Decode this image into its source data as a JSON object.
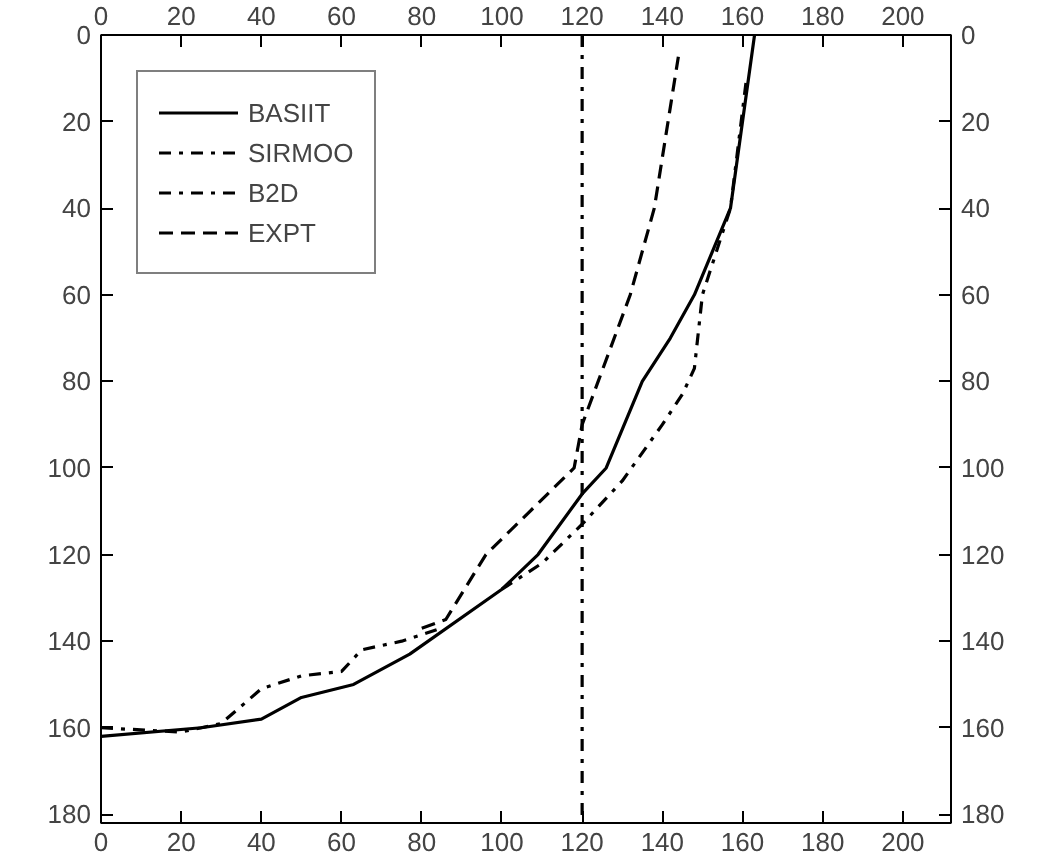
{
  "chart_data": {
    "type": "line",
    "series": [
      {
        "name": "BASIIT",
        "color": "#000000",
        "line_style": "solid",
        "x": [
          0,
          25,
          40,
          50,
          63,
          77,
          100,
          109,
          120,
          126,
          135,
          142,
          148,
          157,
          163
        ],
        "values": [
          162,
          160,
          158,
          153,
          150,
          143,
          128,
          120,
          106,
          100,
          80,
          70,
          60,
          40,
          0
        ]
      },
      {
        "name": "SIRMOO",
        "color": "#000000",
        "line_style": "dashdot",
        "x": [
          100,
          110,
          120,
          130,
          140,
          145,
          148,
          150,
          157,
          161
        ],
        "values": [
          128,
          122,
          113,
          103,
          90,
          83,
          77,
          60,
          40,
          10
        ]
      },
      {
        "name": "B2D",
        "color": "#000000",
        "line_style": "dashdot",
        "x": [
          0,
          20,
          30,
          40,
          50,
          60,
          65,
          75,
          85
        ],
        "values": [
          160,
          161,
          159,
          151,
          148,
          147,
          142,
          140,
          137
        ]
      },
      {
        "name": "EXPT",
        "color": "#000000",
        "line_style": "dashed",
        "x": [
          80,
          86,
          96,
          118,
          120,
          124,
          132,
          138,
          144
        ],
        "values": [
          137,
          135,
          120,
          100,
          90,
          80,
          60,
          40,
          5
        ]
      }
    ],
    "ref_lines": [
      {
        "axis": "x",
        "value": 120,
        "color": "#000000",
        "line_style": "dashdot"
      }
    ],
    "xlim": [
      0,
      212
    ],
    "ylim": [
      182,
      0
    ],
    "xticks": [
      0,
      20,
      40,
      60,
      80,
      100,
      120,
      140,
      160,
      180,
      200
    ],
    "yticks": [
      0,
      20,
      40,
      60,
      80,
      100,
      120,
      140,
      160,
      180
    ],
    "x2lim": [
      0,
      212
    ],
    "x2ticks": [
      0,
      20,
      40,
      60,
      80,
      100,
      120,
      140,
      160,
      180,
      200
    ],
    "y2lim": [
      182,
      0
    ],
    "y2ticks": [
      0,
      20,
      40,
      60,
      80,
      100,
      120,
      140,
      160,
      180
    ],
    "grid": false,
    "legend": "top left"
  }
}
